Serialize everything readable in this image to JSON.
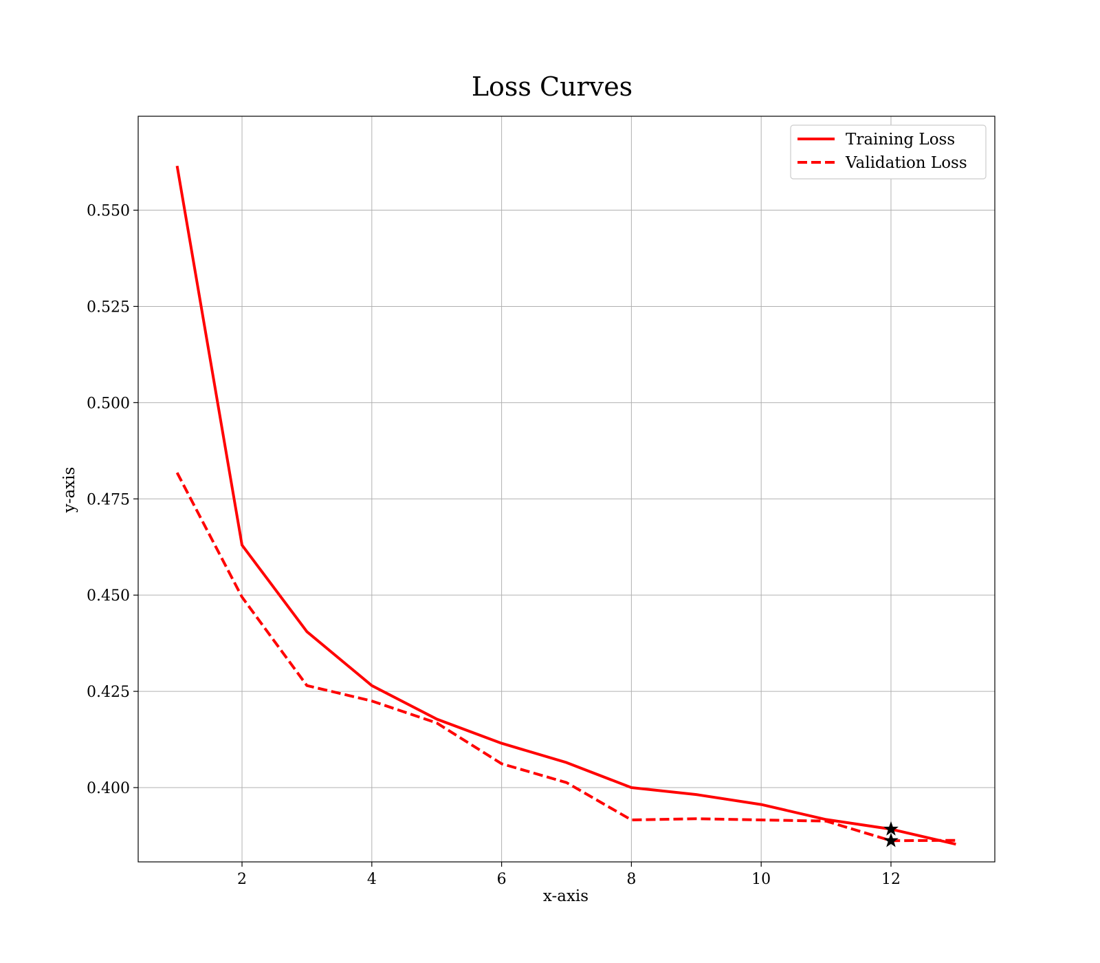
{
  "chart_data": {
    "type": "line",
    "title": "Loss Curves",
    "xlabel": "x-axis",
    "ylabel": "y-axis",
    "xlim": [
      0.4,
      13.6
    ],
    "ylim": [
      0.3807,
      0.5744
    ],
    "x_ticks": [
      2,
      4,
      6,
      8,
      10,
      12
    ],
    "x_tick_labels": [
      "2",
      "4",
      "6",
      "8",
      "10",
      "12"
    ],
    "y_ticks": [
      0.4,
      0.425,
      0.45,
      0.475,
      0.5,
      0.525,
      0.55
    ],
    "y_tick_labels": [
      "0.400",
      "0.425",
      "0.450",
      "0.475",
      "0.500",
      "0.525",
      "0.550"
    ],
    "grid": true,
    "legend_position": "top-right",
    "x": [
      1,
      2,
      3,
      4,
      5,
      6,
      7,
      8,
      9,
      10,
      11,
      12,
      13
    ],
    "series": [
      {
        "name": "Training Loss",
        "style": "solid",
        "color": "#ff0000",
        "values": [
          0.5615,
          0.463,
          0.4405,
          0.4265,
          0.4178,
          0.4115,
          0.4065,
          0.4,
          0.3982,
          0.3956,
          0.3917,
          0.3892,
          0.3853
        ]
      },
      {
        "name": "Validation Loss",
        "style": "dashed",
        "color": "#ff0000",
        "values": [
          0.4818,
          0.4495,
          0.4265,
          0.4225,
          0.4168,
          0.4062,
          0.4013,
          0.3916,
          0.3919,
          0.3916,
          0.3913,
          0.3862,
          0.3863
        ]
      }
    ],
    "markers": [
      {
        "series": "Training Loss",
        "x": 12,
        "y": 0.3892,
        "symbol": "star",
        "color": "#000000"
      },
      {
        "series": "Validation Loss",
        "x": 12,
        "y": 0.3862,
        "symbol": "star",
        "color": "#000000"
      }
    ]
  }
}
